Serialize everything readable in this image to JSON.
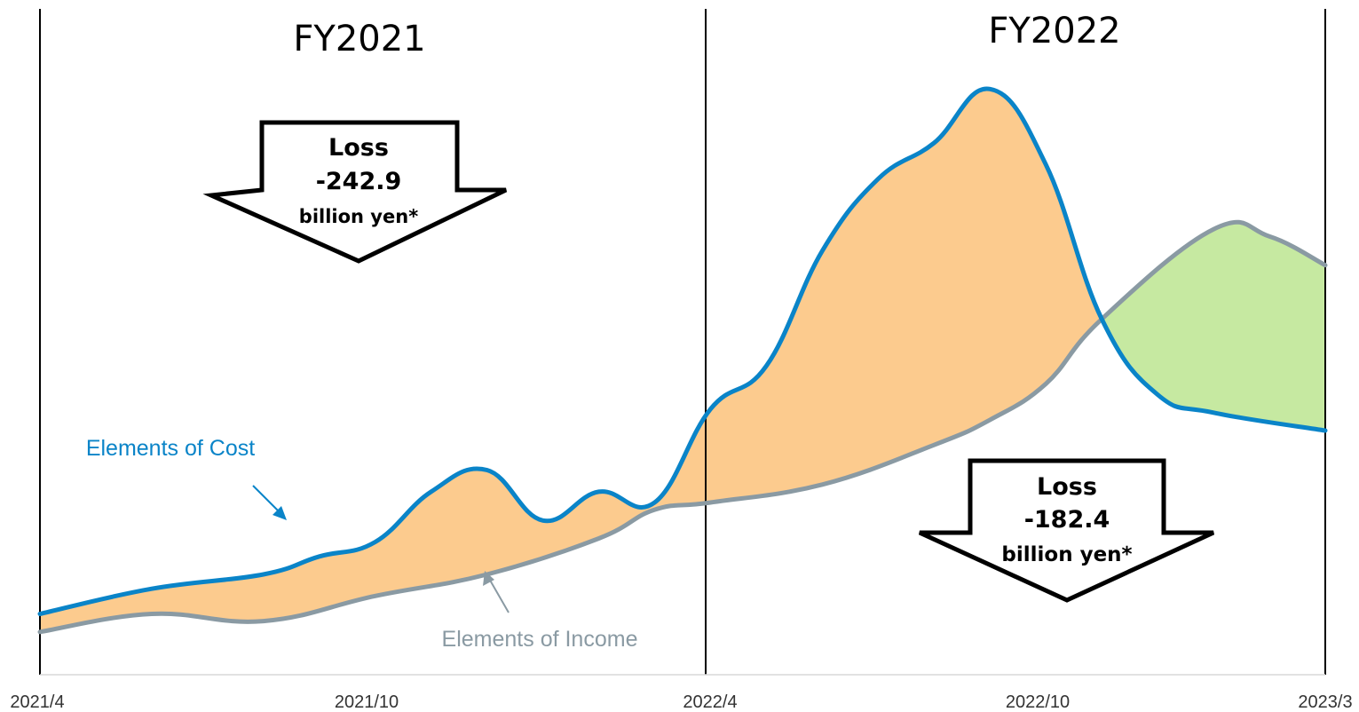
{
  "chart_data": {
    "type": "line",
    "x_axis": {
      "tick_labels": [
        "2021/4",
        "2021/10",
        "2022/4",
        "2022/10",
        "2023/3"
      ]
    },
    "periods": [
      {
        "label": "FY2021",
        "start": "2021/4",
        "end": "2022/3"
      },
      {
        "label": "FY2022",
        "start": "2022/4",
        "end": "2023/3"
      }
    ],
    "series": [
      {
        "name": "Elements of Cost",
        "color": "#0a84c8",
        "values": [
          [
            "2021/4",
            0.9
          ],
          [
            "2021/6",
            1.6
          ],
          [
            "2021/8",
            2.0
          ],
          [
            "2021/9",
            2.5
          ],
          [
            "2021/10",
            2.9
          ],
          [
            "2021/11",
            4.3
          ],
          [
            "2021/12",
            4.9
          ],
          [
            "2022/1",
            3.5
          ],
          [
            "2022/2",
            4.3
          ],
          [
            "2022/3",
            4.0
          ],
          [
            "2022/4",
            6.6
          ],
          [
            "2022/5",
            7.8
          ],
          [
            "2022/6",
            11.0
          ],
          [
            "2022/7",
            13.0
          ],
          [
            "2022/8",
            14.0
          ],
          [
            "2022/9",
            15.5
          ],
          [
            "2022/10",
            13.4
          ],
          [
            "2022/11",
            9.1
          ],
          [
            "2022/12",
            7.0
          ],
          [
            "2023/1",
            6.5
          ],
          [
            "2023/3",
            6.0
          ]
        ]
      },
      {
        "name": "Elements of Income",
        "color": "#8a9aa3",
        "values": [
          [
            "2021/4",
            0.4
          ],
          [
            "2021/6",
            0.9
          ],
          [
            "2021/8",
            0.7
          ],
          [
            "2021/10",
            1.4
          ],
          [
            "2021/12",
            2.0
          ],
          [
            "2022/2",
            3.0
          ],
          [
            "2022/3",
            3.8
          ],
          [
            "2022/4",
            4.0
          ],
          [
            "2022/6",
            4.5
          ],
          [
            "2022/8",
            5.6
          ],
          [
            "2022/9",
            6.3
          ],
          [
            "2022/10",
            7.3
          ],
          [
            "2022/11",
            9.1
          ],
          [
            "2023/1",
            11.6
          ],
          [
            "2023/2",
            11.4
          ],
          [
            "2023/3",
            10.6
          ]
        ]
      }
    ],
    "shading": {
      "loss_color": "#fccb8e",
      "profit_color": "#c6e9a1"
    },
    "annotations": [
      {
        "title": "Loss",
        "value": "-242.9",
        "unit": "billion yen*",
        "period": "FY2021"
      },
      {
        "title": "Loss",
        "value": "-182.4",
        "unit": "billion yen*",
        "period": "FY2022"
      }
    ]
  }
}
